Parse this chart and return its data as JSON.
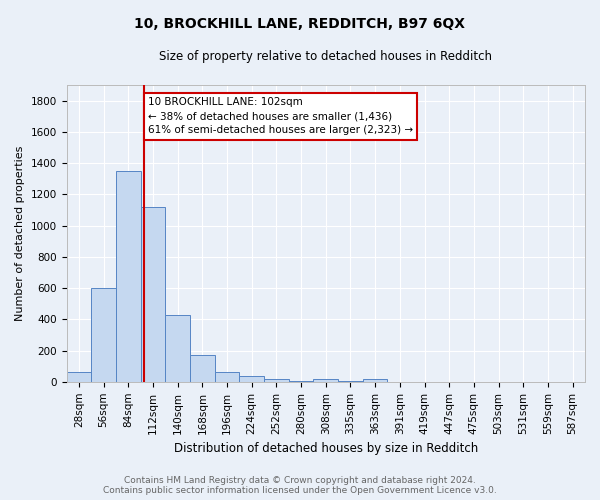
{
  "title": "10, BROCKHILL LANE, REDDITCH, B97 6QX",
  "subtitle": "Size of property relative to detached houses in Redditch",
  "xlabel": "Distribution of detached houses by size in Redditch",
  "ylabel": "Number of detached properties",
  "footer_line1": "Contains HM Land Registry data © Crown copyright and database right 2024.",
  "footer_line2": "Contains public sector information licensed under the Open Government Licence v3.0.",
  "bin_labels": [
    "28sqm",
    "56sqm",
    "84sqm",
    "112sqm",
    "140sqm",
    "168sqm",
    "196sqm",
    "224sqm",
    "252sqm",
    "280sqm",
    "308sqm",
    "335sqm",
    "363sqm",
    "391sqm",
    "419sqm",
    "447sqm",
    "475sqm",
    "503sqm",
    "531sqm",
    "559sqm",
    "587sqm"
  ],
  "bin_values": [
    60,
    600,
    1350,
    1120,
    430,
    170,
    60,
    40,
    15,
    5,
    20,
    5,
    20,
    0,
    0,
    0,
    0,
    0,
    0,
    0,
    0
  ],
  "bar_color": "#c5d8f0",
  "bar_edge_color": "#5585c5",
  "background_color": "#eaf0f8",
  "grid_color": "#ffffff",
  "property_line_x": 3,
  "property_line_color": "#cc0000",
  "annotation_text": "10 BROCKHILL LANE: 102sqm\n← 38% of detached houses are smaller (1,436)\n61% of semi-detached houses are larger (2,323) →",
  "annotation_box_facecolor": "#ffffff",
  "annotation_box_edgecolor": "#cc0000",
  "ylim": [
    0,
    1900
  ],
  "yticks": [
    0,
    200,
    400,
    600,
    800,
    1000,
    1200,
    1400,
    1600,
    1800
  ],
  "title_fontsize": 10,
  "subtitle_fontsize": 8.5,
  "ylabel_fontsize": 8,
  "xlabel_fontsize": 8.5,
  "tick_fontsize": 7.5,
  "footer_fontsize": 6.5,
  "footer_color": "#666666"
}
